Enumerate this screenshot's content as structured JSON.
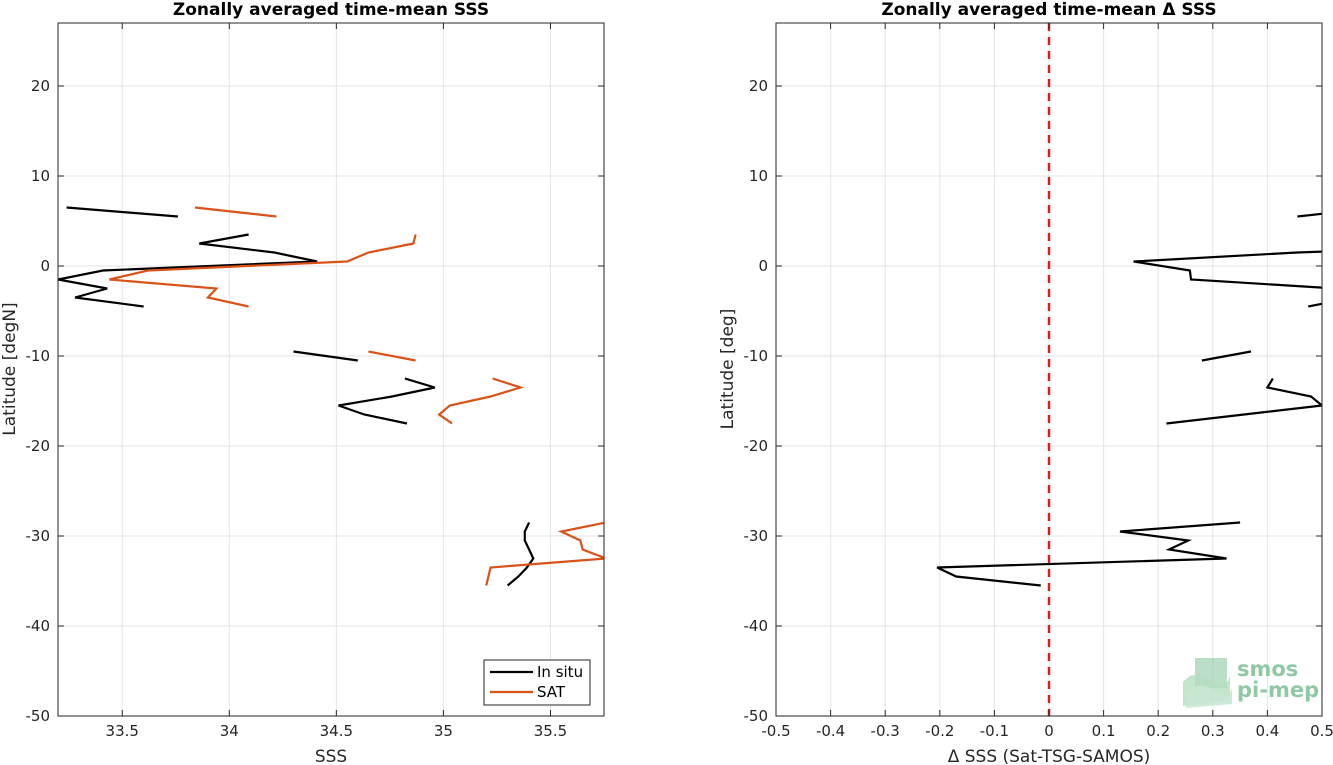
{
  "colors": {
    "insitu": "#000000",
    "sat": "#d95319",
    "zero_line": "#e31a1c",
    "grid": "#e3e3e3",
    "logo": "#8fc9a2"
  },
  "logo": {
    "line1": "smos",
    "line2": "pi-mep",
    "icon": "smos-pimep-logo-icon"
  },
  "chart_data": [
    {
      "type": "line",
      "title": "Zonally averaged time-mean SSS",
      "xlabel": "SSS",
      "ylabel": "Latitude [degN]",
      "xlim": [
        33.2,
        35.75
      ],
      "ylim": [
        -50,
        27
      ],
      "xticks": [
        33.5,
        34,
        34.5,
        35,
        35.5
      ],
      "xtick_labels": [
        "33.5",
        "34",
        "34.5",
        "35",
        "35.5"
      ],
      "yticks": [
        -50,
        -40,
        -30,
        -20,
        -10,
        0,
        10,
        20
      ],
      "ytick_labels": [
        "-50",
        "-40",
        "-30",
        "-20",
        "-10",
        "0",
        "10",
        "20"
      ],
      "grid": true,
      "legend": {
        "position": "bottom-right",
        "entries": [
          "In situ",
          "SAT"
        ]
      },
      "series": [
        {
          "name": "In situ",
          "color_key": "insitu",
          "segments": [
            [
              [
                33.24,
                6.5
              ],
              [
                33.76,
                5.5
              ]
            ],
            [
              [
                34.09,
                3.5
              ],
              [
                33.86,
                2.5
              ],
              [
                34.21,
                1.5
              ],
              [
                34.41,
                0.5
              ],
              [
                33.41,
                -0.5
              ],
              [
                33.2,
                -1.5
              ],
              [
                33.43,
                -2.5
              ],
              [
                33.28,
                -3.5
              ],
              [
                33.6,
                -4.5
              ]
            ],
            [
              [
                34.3,
                -9.5
              ],
              [
                34.6,
                -10.5
              ]
            ],
            [
              [
                34.82,
                -12.5
              ],
              [
                34.96,
                -13.5
              ],
              [
                34.76,
                -14.5
              ],
              [
                34.51,
                -15.5
              ],
              [
                34.63,
                -16.5
              ],
              [
                34.83,
                -17.5
              ]
            ],
            [
              [
                35.4,
                -28.5
              ],
              [
                35.38,
                -29.5
              ],
              [
                35.38,
                -30.5
              ],
              [
                35.4,
                -31.5
              ],
              [
                35.42,
                -32.5
              ],
              [
                35.39,
                -33.5
              ],
              [
                35.35,
                -34.5
              ],
              [
                35.3,
                -35.5
              ]
            ]
          ]
        },
        {
          "name": "SAT",
          "color_key": "sat",
          "segments": [
            [
              [
                33.84,
                6.5
              ],
              [
                34.22,
                5.5
              ]
            ],
            [
              [
                34.87,
                3.5
              ],
              [
                34.86,
                2.5
              ],
              [
                34.65,
                1.5
              ],
              [
                34.55,
                0.5
              ],
              [
                33.62,
                -0.5
              ],
              [
                33.44,
                -1.5
              ],
              [
                33.94,
                -2.5
              ],
              [
                33.9,
                -3.5
              ],
              [
                34.09,
                -4.5
              ]
            ],
            [
              [
                34.65,
                -9.5
              ],
              [
                34.87,
                -10.5
              ]
            ],
            [
              [
                35.23,
                -12.5
              ],
              [
                35.36,
                -13.5
              ],
              [
                35.22,
                -14.5
              ],
              [
                35.03,
                -15.5
              ],
              [
                34.98,
                -16.5
              ],
              [
                35.04,
                -17.5
              ]
            ],
            [
              [
                35.76,
                -28.5
              ],
              [
                35.55,
                -29.5
              ],
              [
                35.64,
                -30.5
              ],
              [
                35.65,
                -31.5
              ],
              [
                35.76,
                -32.5
              ],
              [
                35.22,
                -33.5
              ],
              [
                35.21,
                -34.5
              ],
              [
                35.2,
                -35.5
              ]
            ]
          ]
        }
      ]
    },
    {
      "type": "line",
      "title": "Zonally averaged time-mean Δ SSS",
      "xlabel": "Δ SSS (Sat-TSG-SAMOS)",
      "ylabel": "Latitude [deg]",
      "xlim": [
        -0.5,
        0.5
      ],
      "ylim": [
        -50,
        27
      ],
      "xticks": [
        -0.5,
        -0.4,
        -0.3,
        -0.2,
        -0.1,
        0,
        0.1,
        0.2,
        0.3,
        0.4,
        0.5
      ],
      "xtick_labels": [
        "-0.5",
        "-0.4",
        "-0.3",
        "-0.2",
        "-0.1",
        "0",
        "0.1",
        "0.2",
        "0.3",
        "0.4",
        "0.5"
      ],
      "yticks": [
        -50,
        -40,
        -30,
        -20,
        -10,
        0,
        10,
        20
      ],
      "ytick_labels": [
        "-50",
        "-40",
        "-30",
        "-20",
        "-10",
        "0",
        "10",
        "20"
      ],
      "grid": true,
      "reference_line": {
        "x": 0,
        "style": "dashed",
        "color_key": "zero_line"
      },
      "series": [
        {
          "color_key": "insitu",
          "segments": [
            [
              [
                0.455,
                5.5
              ],
              [
                0.5,
                5.8
              ]
            ],
            [
              [
                0.5,
                1.6
              ],
              [
                0.455,
                1.5
              ],
              [
                0.155,
                0.5
              ],
              [
                0.258,
                -0.5
              ],
              [
                0.26,
                -1.5
              ],
              [
                0.5,
                -2.4
              ]
            ],
            [
              [
                0.5,
                -4.2
              ],
              [
                0.475,
                -4.5
              ]
            ],
            [
              [
                0.37,
                -9.5
              ],
              [
                0.28,
                -10.5
              ]
            ],
            [
              [
                0.41,
                -12.5
              ],
              [
                0.4,
                -13.5
              ],
              [
                0.48,
                -14.5
              ],
              [
                0.5,
                -15.5
              ],
              [
                0.215,
                -17.5
              ]
            ],
            [
              [
                0.35,
                -28.5
              ],
              [
                0.13,
                -29.5
              ],
              [
                0.255,
                -30.5
              ],
              [
                0.22,
                -31.5
              ],
              [
                0.325,
                -32.5
              ],
              [
                -0.205,
                -33.5
              ],
              [
                -0.17,
                -34.5
              ],
              [
                -0.015,
                -35.5
              ]
            ]
          ]
        }
      ]
    }
  ]
}
